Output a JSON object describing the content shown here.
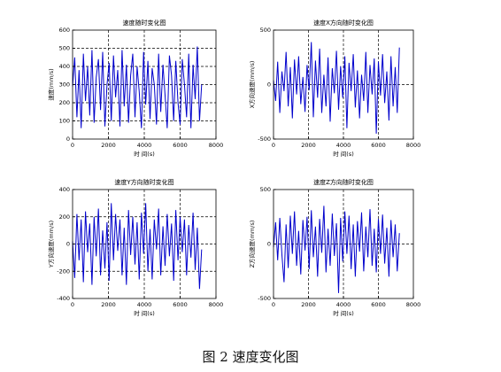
{
  "figure_caption": "图 2  速度变化图",
  "chart_data": [
    {
      "type": "line",
      "title": "速度随时变化图",
      "xlabel": "时 间(s)",
      "ylabel": "速度(mm/s)",
      "xlim": [
        0,
        8000
      ],
      "ylim": [
        0,
        600
      ],
      "xticks": [
        0,
        2000,
        4000,
        6000,
        8000
      ],
      "yticks": [
        0,
        100,
        200,
        300,
        400,
        500,
        600
      ],
      "grid": "dashed",
      "line_color": "#0000cc",
      "x": [
        0,
        120,
        240,
        360,
        480,
        600,
        720,
        840,
        960,
        1080,
        1200,
        1320,
        1440,
        1560,
        1680,
        1800,
        1920,
        2040,
        2160,
        2280,
        2400,
        2520,
        2640,
        2760,
        2880,
        3000,
        3120,
        3240,
        3360,
        3480,
        3600,
        3720,
        3840,
        3960,
        4080,
        4200,
        4320,
        4440,
        4560,
        4680,
        4800,
        4920,
        5040,
        5160,
        5280,
        5400,
        5520,
        5640,
        5760,
        5880,
        6000,
        6120,
        6240,
        6360,
        6480,
        6600,
        6720,
        6840,
        6960,
        7080,
        7200
      ],
      "y": [
        290,
        450,
        120,
        380,
        60,
        470,
        210,
        400,
        130,
        490,
        90,
        340,
        440,
        160,
        480,
        70,
        300,
        420,
        100,
        460,
        230,
        380,
        70,
        490,
        180,
        410,
        90,
        350,
        470,
        120,
        400,
        260,
        60,
        480,
        190,
        430,
        110,
        390,
        300,
        80,
        470,
        150,
        410,
        240,
        60,
        460,
        350,
        100,
        430,
        200,
        80,
        440,
        300,
        120,
        470,
        60,
        410,
        220,
        510,
        100,
        300
      ]
    },
    {
      "type": "line",
      "title": "速度X方向随时变化图",
      "xlabel": "时 间(s)",
      "ylabel": "X方向速度(mm/s)",
      "xlim": [
        0,
        8000
      ],
      "ylim": [
        -500,
        500
      ],
      "xticks": [
        0,
        2000,
        4000,
        6000,
        8000
      ],
      "yticks": [
        -500,
        0,
        500
      ],
      "grid": "dashed",
      "line_color": "#0000cc",
      "x": [
        0,
        120,
        240,
        360,
        480,
        600,
        720,
        840,
        960,
        1080,
        1200,
        1320,
        1440,
        1560,
        1680,
        1800,
        1920,
        2040,
        2160,
        2280,
        2400,
        2520,
        2640,
        2760,
        2880,
        3000,
        3120,
        3240,
        3360,
        3480,
        3600,
        3720,
        3840,
        3960,
        4080,
        4200,
        4320,
        4440,
        4560,
        4680,
        4800,
        4920,
        5040,
        5160,
        5280,
        5400,
        5520,
        5640,
        5760,
        5880,
        6000,
        6120,
        6240,
        6360,
        6480,
        6600,
        6720,
        6840,
        6960,
        7080,
        7200
      ],
      "y": [
        40,
        -150,
        210,
        -260,
        120,
        -60,
        300,
        -200,
        160,
        -310,
        230,
        -90,
        260,
        -180,
        70,
        -250,
        180,
        -50,
        390,
        -300,
        220,
        -120,
        330,
        -260,
        90,
        -200,
        250,
        -340,
        150,
        -80,
        310,
        -230,
        170,
        -120,
        260,
        -400,
        200,
        -60,
        280,
        -210,
        130,
        -310,
        90,
        -150,
        300,
        -260,
        180,
        -90,
        240,
        -450,
        210,
        -100,
        280,
        -170,
        120,
        -330,
        260,
        -200,
        160,
        -260,
        340
      ]
    },
    {
      "type": "line",
      "title": "速度Y方向随时变化图",
      "xlabel": "时 间(s)",
      "ylabel": "Y方向速度(mm/s)",
      "xlim": [
        0,
        8000
      ],
      "ylim": [
        -400,
        400
      ],
      "xticks": [
        0,
        2000,
        4000,
        6000,
        8000
      ],
      "yticks": [
        -400,
        -200,
        0,
        200,
        400
      ],
      "grid": "dashed",
      "line_color": "#0000cc",
      "x": [
        0,
        120,
        240,
        360,
        480,
        600,
        720,
        840,
        960,
        1080,
        1200,
        1320,
        1440,
        1560,
        1680,
        1800,
        1920,
        2040,
        2160,
        2280,
        2400,
        2520,
        2640,
        2760,
        2880,
        3000,
        3120,
        3240,
        3360,
        3480,
        3600,
        3720,
        3840,
        3960,
        4080,
        4200,
        4320,
        4440,
        4560,
        4680,
        4800,
        4920,
        5040,
        5160,
        5280,
        5400,
        5520,
        5640,
        5760,
        5880,
        6000,
        6120,
        6240,
        6360,
        6480,
        6600,
        6720,
        6840,
        6960,
        7080,
        7200
      ],
      "y": [
        20,
        -250,
        220,
        -120,
        180,
        -280,
        240,
        -60,
        150,
        -300,
        200,
        -90,
        260,
        -230,
        100,
        -180,
        160,
        -270,
        300,
        -120,
        220,
        -50,
        180,
        -230,
        120,
        -300,
        250,
        -80,
        200,
        -150,
        160,
        -260,
        230,
        -70,
        300,
        -200,
        110,
        -260,
        180,
        -40,
        260,
        -230,
        130,
        -160,
        220,
        -90,
        150,
        -270,
        250,
        -120,
        200,
        -60,
        180,
        -230,
        140,
        -100,
        230,
        -190,
        120,
        -330,
        -40
      ]
    },
    {
      "type": "line",
      "title": "速度Z方向随时变化图",
      "xlabel": "时 间(s)",
      "ylabel": "Z方向速度(mm/s)",
      "xlim": [
        0,
        8000
      ],
      "ylim": [
        -500,
        500
      ],
      "xticks": [
        0,
        2000,
        4000,
        6000,
        8000
      ],
      "yticks": [
        -500,
        0,
        500
      ],
      "grid": "dashed",
      "line_color": "#0000cc",
      "x": [
        0,
        120,
        240,
        360,
        480,
        600,
        720,
        840,
        960,
        1080,
        1200,
        1320,
        1440,
        1560,
        1680,
        1800,
        1920,
        2040,
        2160,
        2280,
        2400,
        2520,
        2640,
        2760,
        2880,
        3000,
        3120,
        3240,
        3360,
        3480,
        3600,
        3720,
        3840,
        3960,
        4080,
        4200,
        4320,
        4440,
        4560,
        4680,
        4800,
        4920,
        5040,
        5160,
        5280,
        5400,
        5520,
        5640,
        5760,
        5880,
        6000,
        6120,
        6240,
        6360,
        6480,
        6600,
        6720,
        6840,
        6960,
        7080,
        7200
      ],
      "y": [
        -30,
        200,
        -150,
        240,
        -100,
        -350,
        180,
        -220,
        260,
        -90,
        300,
        -200,
        120,
        -280,
        220,
        -60,
        250,
        -230,
        310,
        -120,
        160,
        -300,
        230,
        -80,
        350,
        -260,
        140,
        -200,
        280,
        -110,
        190,
        -450,
        240,
        -160,
        300,
        -90,
        260,
        -230,
        180,
        -300,
        210,
        -70,
        290,
        -250,
        160,
        -120,
        320,
        -200,
        140,
        -260,
        230,
        -90,
        270,
        -180,
        150,
        -300,
        220,
        -120,
        180,
        -250,
        100
      ]
    }
  ]
}
